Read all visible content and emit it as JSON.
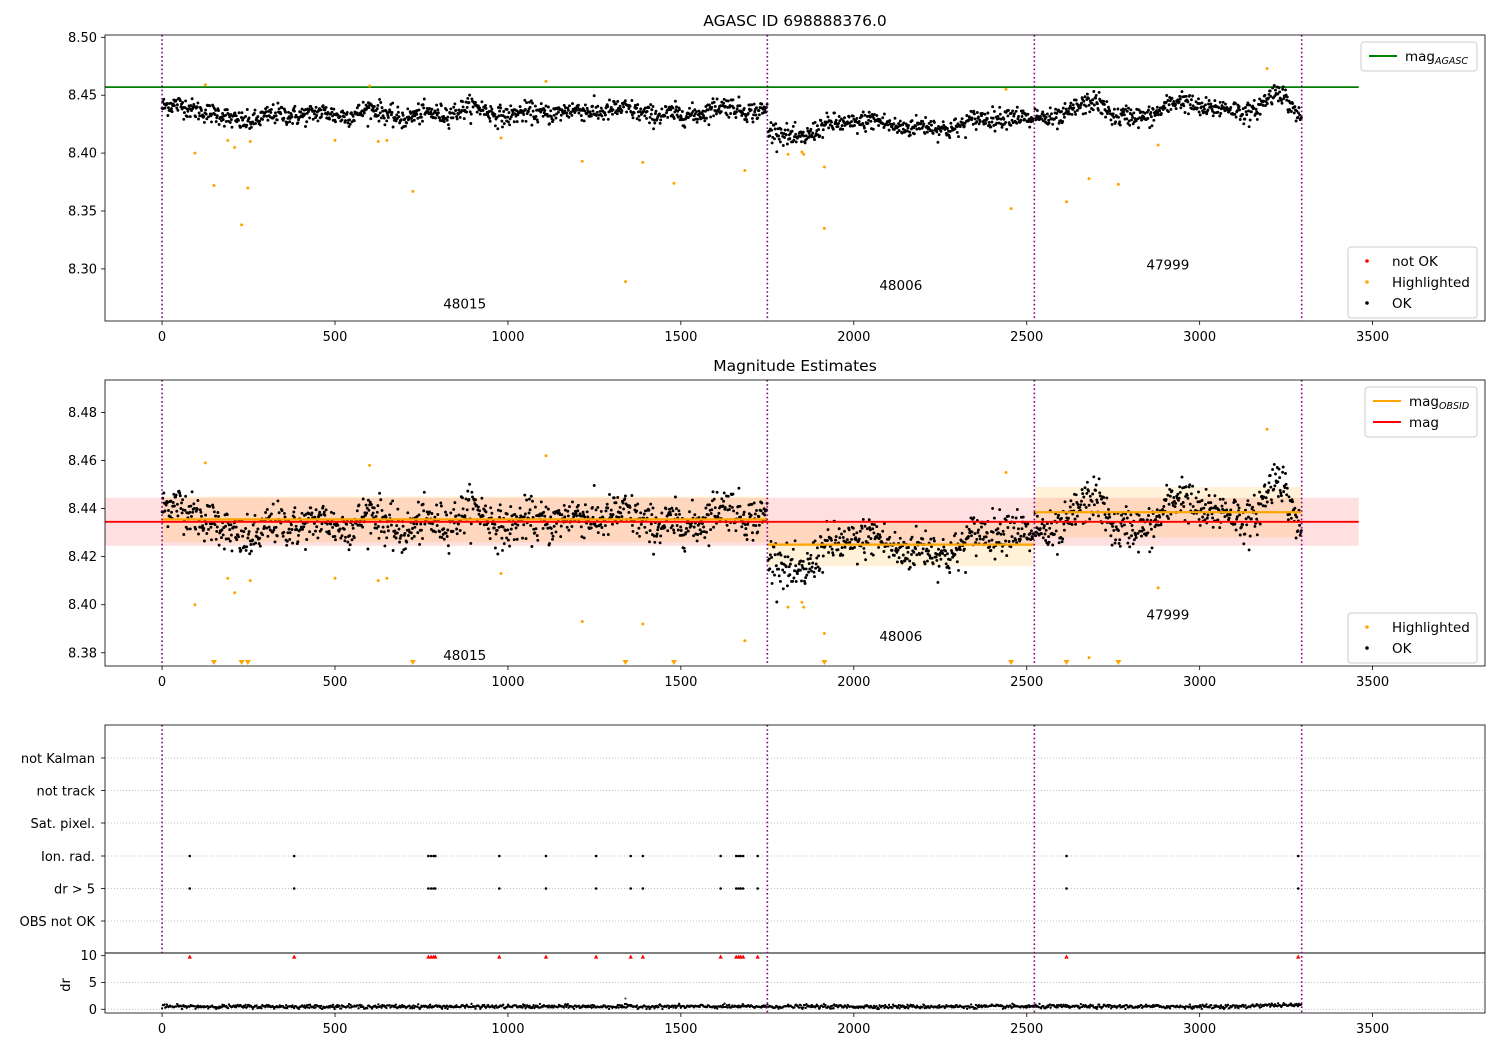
{
  "chart_data": [
    {
      "type": "scatter",
      "title": "AGASC ID 698888376.0",
      "xlim": [
        -165,
        3825
      ],
      "ylim": [
        8.255,
        8.502
      ],
      "xticks": [
        "0",
        "500",
        "1000",
        "1500",
        "2000",
        "2500",
        "3000",
        "3500"
      ],
      "yticks": [
        "8.30",
        "8.35",
        "8.40",
        "8.45",
        "8.50"
      ],
      "obs_boundaries": [
        0,
        1750,
        2522,
        3295
      ],
      "obs_labels": [
        {
          "text": "48015",
          "x": 875,
          "y": 8.27
        },
        {
          "text": "48006",
          "x": 2136,
          "y": 8.286
        },
        {
          "text": "47999",
          "x": 2908,
          "y": 8.304
        }
      ],
      "series": [
        {
          "name": "mag_AGASC",
          "type": "line",
          "color": "#008000",
          "value": 8.457,
          "x_range": [
            0,
            3460
          ]
        },
        {
          "name": "OK",
          "type": "scatter",
          "color": "#000000",
          "segments": [
            {
              "x_range": [
                0,
                1750
              ],
              "levels": [
                [
                  0,
                  8.44
                ],
                [
                  100,
                  8.437
                ],
                [
                  200,
                  8.428
                ],
                [
                  300,
                  8.433
                ],
                [
                  400,
                  8.434
                ],
                [
                  500,
                  8.43
                ],
                [
                  600,
                  8.438
                ],
                [
                  700,
                  8.433
                ],
                [
                  800,
                  8.433
                ],
                [
                  900,
                  8.437
                ],
                [
                  1000,
                  8.434
                ],
                [
                  1100,
                  8.437
                ],
                [
                  1200,
                  8.434
                ],
                [
                  1300,
                  8.436
                ],
                [
                  1400,
                  8.437
                ],
                [
                  1500,
                  8.433
                ],
                [
                  1600,
                  8.437
                ],
                [
                  1750,
                  8.437
                ]
              ],
              "noise": 0.007
            },
            {
              "x_range": [
                1752,
                2522
              ],
              "levels": [
                [
                  1752,
                  8.419
                ],
                [
                  1850,
                  8.416
                ],
                [
                  1950,
                  8.425
                ],
                [
                  2100,
                  8.425
                ],
                [
                  2300,
                  8.423
                ],
                [
                  2450,
                  8.432
                ],
                [
                  2522,
                  8.425
                ]
              ],
              "noise": 0.007
            },
            {
              "x_range": [
                2524,
                3295
              ],
              "levels": [
                [
                  2524,
                  8.434
                ],
                [
                  2600,
                  8.432
                ],
                [
                  2700,
                  8.447
                ],
                [
                  2760,
                  8.427
                ],
                [
                  2850,
                  8.432
                ],
                [
                  2950,
                  8.447
                ],
                [
                  3050,
                  8.438
                ],
                [
                  3150,
                  8.434
                ],
                [
                  3230,
                  8.452
                ],
                [
                  3295,
                  8.433
                ]
              ],
              "noise": 0.007
            }
          ]
        },
        {
          "name": "Highlighted",
          "type": "scatter",
          "color": "#ffa500",
          "points": [
            [
              95,
              8.4
            ],
            [
              125,
              8.459
            ],
            [
              150,
              8.372
            ],
            [
              190,
              8.411
            ],
            [
              210,
              8.405
            ],
            [
              230,
              8.338
            ],
            [
              248,
              8.37
            ],
            [
              255,
              8.41
            ],
            [
              500,
              8.411
            ],
            [
              600,
              8.458
            ],
            [
              625,
              8.41
            ],
            [
              650,
              8.411
            ],
            [
              725,
              8.367
            ],
            [
              980,
              8.413
            ],
            [
              1110,
              8.462
            ],
            [
              1215,
              8.393
            ],
            [
              1340,
              8.289
            ],
            [
              1390,
              8.392
            ],
            [
              1480,
              8.374
            ],
            [
              1685,
              8.385
            ],
            [
              1810,
              8.399
            ],
            [
              1850,
              8.401
            ],
            [
              1855,
              8.399
            ],
            [
              1915,
              8.388
            ],
            [
              1915,
              8.335
            ],
            [
              2440,
              8.455
            ],
            [
              2455,
              8.352
            ],
            [
              2615,
              8.358
            ],
            [
              2680,
              8.378
            ],
            [
              2765,
              8.373
            ],
            [
              2880,
              8.407
            ],
            [
              3195,
              8.473
            ]
          ]
        },
        {
          "name": "not OK",
          "type": "scatter",
          "color": "#ff0000",
          "points": []
        }
      ],
      "legend": [
        {
          "position": "top-right",
          "items": [
            "mag_AGASC"
          ]
        },
        {
          "position": "lower-right",
          "items": [
            "not OK",
            "Highlighted",
            "OK"
          ]
        }
      ]
    },
    {
      "type": "scatter",
      "title": "Magnitude Estimates",
      "xlim": [
        -165,
        3825
      ],
      "ylim": [
        8.3745,
        8.4935
      ],
      "xticks": [
        "0",
        "500",
        "1000",
        "1500",
        "2000",
        "2500",
        "3000",
        "3500"
      ],
      "yticks": [
        "8.38",
        "8.40",
        "8.42",
        "8.44",
        "8.46",
        "8.48"
      ],
      "obs_boundaries": [
        0,
        1750,
        2522,
        3295
      ],
      "obs_labels": [
        {
          "text": "48015",
          "x": 875,
          "y": 8.379
        },
        {
          "text": "48006",
          "x": 2136,
          "y": 8.387
        },
        {
          "text": "47999",
          "x": 2908,
          "y": 8.396
        }
      ],
      "mag": {
        "name": "mag",
        "value": 8.4345,
        "band": [
          8.4245,
          8.4445
        ],
        "x_range": [
          0,
          3460
        ],
        "color": "#ff0000"
      },
      "mag_obsid": [
        {
          "x_range": [
            0,
            1750
          ],
          "value": 8.4355,
          "band": [
            8.426,
            8.445
          ]
        },
        {
          "x_range": [
            1752,
            2522
          ],
          "value": 8.425,
          "band": [
            8.416,
            8.434
          ]
        },
        {
          "x_range": [
            2524,
            3295
          ],
          "value": 8.4385,
          "band": [
            8.428,
            8.449
          ]
        }
      ],
      "mag_obsid_color": "#ffa500",
      "series": [
        {
          "name": "mag_OBSID",
          "type": "line"
        },
        {
          "name": "mag",
          "type": "line"
        },
        {
          "name": "OK",
          "type": "scatter",
          "color": "#000000",
          "same_as": "panel 1 OK"
        },
        {
          "name": "Highlighted",
          "type": "scatter",
          "color": "#ffa500",
          "same_as": "panel 1 Highlighted, values below 8.375 drawn as markers on lower edge"
        }
      ],
      "legend": [
        {
          "position": "top-right",
          "items": [
            "mag_OBSID",
            "mag"
          ]
        },
        {
          "position": "lower-right",
          "items": [
            "Highlighted",
            "OK"
          ]
        }
      ]
    },
    {
      "type": "scatter",
      "title": "",
      "xlim": [
        -165,
        3825
      ],
      "xticks": [
        "0",
        "500",
        "1000",
        "1500",
        "2000",
        "2500",
        "3000",
        "3500"
      ],
      "flag_rows": [
        "not Kalman",
        "not track",
        "Sat. pixel.",
        "Ion. rad.",
        "dr > 5",
        "OBS not OK"
      ],
      "flag_points": {
        "Ion. rad.": [
          80,
          382,
          770,
          778,
          785,
          790,
          975,
          1110,
          1255,
          1355,
          1390,
          1615,
          1660,
          1667,
          1673,
          1680,
          1722,
          2615,
          3285
        ],
        "dr > 5": [
          80,
          382,
          770,
          778,
          785,
          790,
          975,
          1110,
          1255,
          1355,
          1390,
          1615,
          1660,
          1667,
          1673,
          1680,
          1722,
          2615,
          3285
        ]
      },
      "dr": {
        "ylabel": "dr",
        "yticks": [
          "0",
          "5",
          "10"
        ],
        "ylim": [
          -0.7,
          10.5
        ],
        "clipped_markers": [
          80,
          382,
          770,
          778,
          785,
          790,
          975,
          1110,
          1255,
          1355,
          1390,
          1615,
          1660,
          1667,
          1673,
          1680,
          1722,
          2615,
          3285
        ],
        "typical": 0.5,
        "extra_points": [
          [
            1340,
            2.0
          ]
        ]
      }
    }
  ]
}
